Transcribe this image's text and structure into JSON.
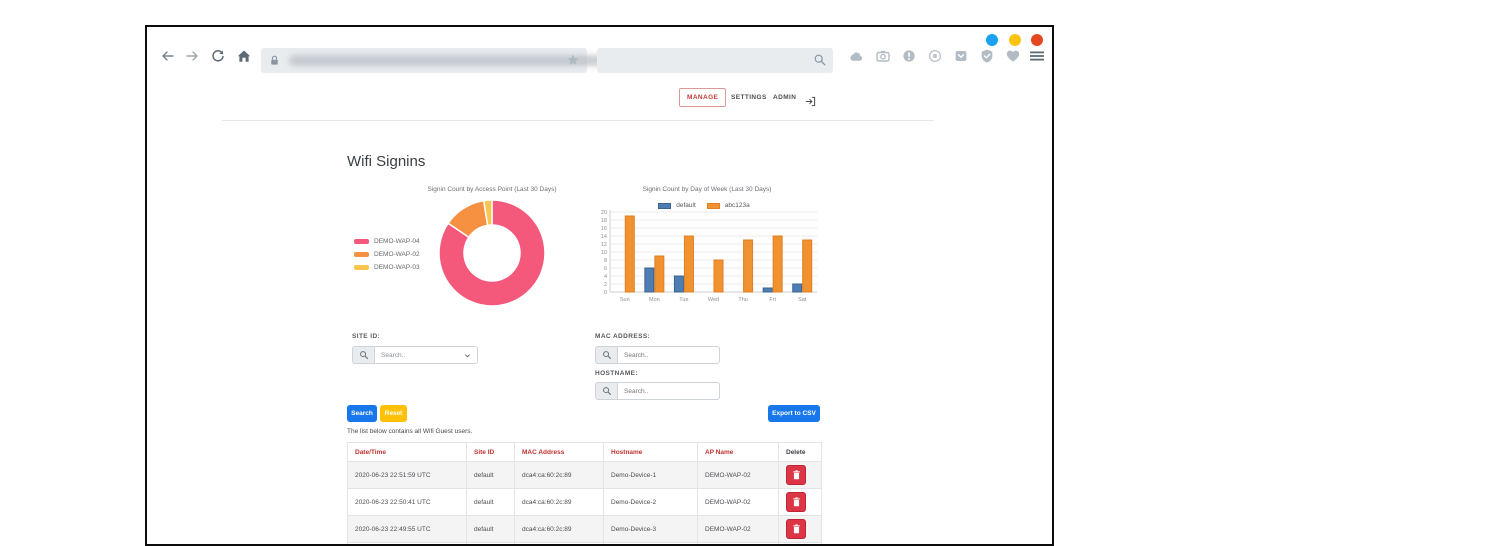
{
  "window": {
    "dot_colors": [
      "#19a2f3",
      "#fcc411",
      "#e5481f"
    ],
    "icons": [
      "back",
      "forward",
      "reload",
      "home",
      "cloud",
      "camera",
      "info",
      "broadcast",
      "pocket",
      "shield",
      "heart",
      "menu"
    ]
  },
  "browser": {
    "nav_tabs": [
      {
        "label": "MANAGE",
        "active": true
      },
      {
        "label": "SETTINGS",
        "active": false
      },
      {
        "label": "ADMIN",
        "active": false
      }
    ]
  },
  "page": {
    "title": "Wifi Signins",
    "note": "The list below contains all Wifi Guest users."
  },
  "filters": {
    "site_id": {
      "label": "SITE ID:",
      "placeholder": "Search.."
    },
    "mac_address": {
      "label": "MAC ADDRESS:",
      "placeholder": "Search.."
    },
    "hostname": {
      "label": "HOSTNAME:",
      "placeholder": "Search.."
    }
  },
  "buttons": {
    "search": "Search",
    "reset": "Reset",
    "export": "Export to CSV"
  },
  "chart_data": [
    {
      "type": "pie",
      "subtype": "doughnut",
      "title": "Signin Count by Access Point (Last 30 Days)",
      "labels": [
        "DEMO-WAP-04",
        "DEMO-WAP-02",
        "DEMO-WAP-03"
      ],
      "values": [
        84.5,
        13,
        2.5
      ],
      "colors": [
        "#f4587b",
        "#f79142",
        "#fcc54e"
      ],
      "legend_position": "left"
    },
    {
      "type": "bar",
      "title": "Signin Count by Day of Week (Last 30 Days)",
      "categories": [
        "Sun",
        "Mon",
        "Tue",
        "Wed",
        "Thu",
        "Fri",
        "Sat"
      ],
      "series": [
        {
          "name": "default",
          "values": [
            0,
            6,
            4,
            0,
            0,
            1,
            2
          ],
          "color": "#4d7db3",
          "border": "#3a6491"
        },
        {
          "name": "abc123a",
          "values": [
            19,
            9,
            14,
            8,
            13,
            14,
            13
          ],
          "color": "#f0922f",
          "border": "#e07f23"
        }
      ],
      "ylim": [
        0,
        20
      ],
      "ytick_step": 2,
      "grid": true,
      "legend_position": "top"
    }
  ],
  "table": {
    "headers": [
      "Date/Time",
      "Site ID",
      "MAC Address",
      "Hostname",
      "AP Name",
      "Delete"
    ],
    "rows": [
      {
        "datetime": "2020-06-23 22:51:59 UTC",
        "site_id": "default",
        "mac": "dca4:ca:60:2c:89",
        "hostname": "Demo-Device-1",
        "ap_name": "DEMO-WAP-02"
      },
      {
        "datetime": "2020-06-23 22:50:41 UTC",
        "site_id": "default",
        "mac": "dca4:ca:60:2c:89",
        "hostname": "Demo-Device-2",
        "ap_name": "DEMO-WAP-02"
      },
      {
        "datetime": "2020-06-23 22:49:55 UTC",
        "site_id": "default",
        "mac": "dca4:ca:60:2c:89",
        "hostname": "Demo-Device-3",
        "ap_name": "DEMO-WAP-02"
      },
      {
        "datetime": "",
        "site_id": "",
        "mac": "",
        "hostname": "",
        "ap_name": ""
      }
    ]
  }
}
